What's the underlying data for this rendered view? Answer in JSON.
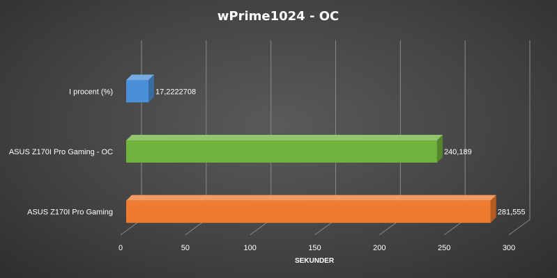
{
  "chart_data": {
    "type": "bar",
    "orientation": "horizontal",
    "title": "wPrime1024  - OC",
    "xlabel": "SEKUNDER",
    "ylabel": "",
    "xlim": [
      0,
      300
    ],
    "xticks": [
      "0",
      "50",
      "100",
      "150",
      "200",
      "250",
      "300"
    ],
    "grid": true,
    "categories": [
      "I procent (%)",
      "ASUS Z170I Pro Gaming - OC",
      "ASUS Z170I Pro Gaming"
    ],
    "values": [
      17.2222708,
      240.189,
      281.555
    ],
    "value_labels": [
      "17,2222708",
      "240,189",
      "281,555"
    ],
    "colors": [
      "#4a90d9",
      "#6fb23c",
      "#ee7b30"
    ]
  }
}
